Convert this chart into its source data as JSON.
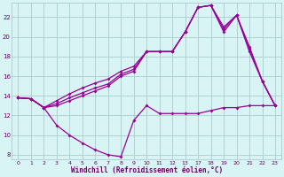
{
  "bg_color": "#d8f4f4",
  "line_color": "#990099",
  "grid_color": "#aacccc",
  "xlabel": "Windchill (Refroidissement éolien,°C)",
  "xlabel_color": "#660066",
  "ylabel_color": "#660066",
  "xlim": [
    -0.5,
    20.5
  ],
  "ylim": [
    7.5,
    23.5
  ],
  "yticks": [
    8,
    10,
    12,
    14,
    16,
    18,
    20,
    22
  ],
  "xtick_positions": [
    0,
    1,
    2,
    3,
    4,
    5,
    6,
    7,
    8,
    9,
    10,
    11,
    12,
    13,
    14,
    15,
    16,
    17,
    18,
    19,
    20
  ],
  "xtick_labels": [
    "0",
    "1",
    "2",
    "3",
    "4",
    "5",
    "6",
    "7",
    "8",
    "9",
    "10",
    "11",
    "12",
    "13",
    "17",
    "18",
    "19",
    "20",
    "21",
    "22",
    "23"
  ],
  "series1_x": [
    0,
    1,
    2,
    3,
    4,
    5,
    6,
    7,
    8,
    9,
    10,
    11,
    12,
    13,
    14,
    15,
    16,
    17,
    18,
    19,
    20
  ],
  "series1_y": [
    13.8,
    13.7,
    12.8,
    11.0,
    10.0,
    9.2,
    8.5,
    8.0,
    7.8,
    11.5,
    13.0,
    12.2,
    12.2,
    12.2,
    12.2,
    12.5,
    12.8,
    12.8,
    13.0,
    13.0,
    13.0
  ],
  "series2_x": [
    0,
    1,
    2,
    3,
    4,
    5,
    6,
    7,
    8,
    9,
    10,
    11,
    12,
    13,
    14,
    15,
    16,
    17,
    18,
    19,
    20
  ],
  "series2_y": [
    13.8,
    13.7,
    12.8,
    13.5,
    14.2,
    14.8,
    15.3,
    15.7,
    16.5,
    17.0,
    18.5,
    18.5,
    18.5,
    20.5,
    23.0,
    23.2,
    21.0,
    22.2,
    19.0,
    15.5,
    13.0
  ],
  "series3_x": [
    0,
    1,
    2,
    3,
    4,
    5,
    6,
    7,
    8,
    9,
    10,
    11,
    12,
    13,
    14,
    15,
    16,
    17,
    18,
    19,
    20
  ],
  "series3_y": [
    13.8,
    13.7,
    12.8,
    13.2,
    13.8,
    14.3,
    14.8,
    15.2,
    16.2,
    16.7,
    18.5,
    18.5,
    18.5,
    20.5,
    23.0,
    23.2,
    20.8,
    22.2,
    18.8,
    15.5,
    13.0
  ],
  "series4_x": [
    0,
    1,
    2,
    3,
    4,
    5,
    6,
    7,
    8,
    9,
    10,
    11,
    12,
    13,
    14,
    15,
    16,
    17,
    18,
    19,
    20
  ],
  "series4_y": [
    13.8,
    13.7,
    12.8,
    13.0,
    13.5,
    14.0,
    14.5,
    15.0,
    16.0,
    16.5,
    18.5,
    18.5,
    18.5,
    20.5,
    23.0,
    23.2,
    20.5,
    22.2,
    18.5,
    15.5,
    13.0
  ]
}
